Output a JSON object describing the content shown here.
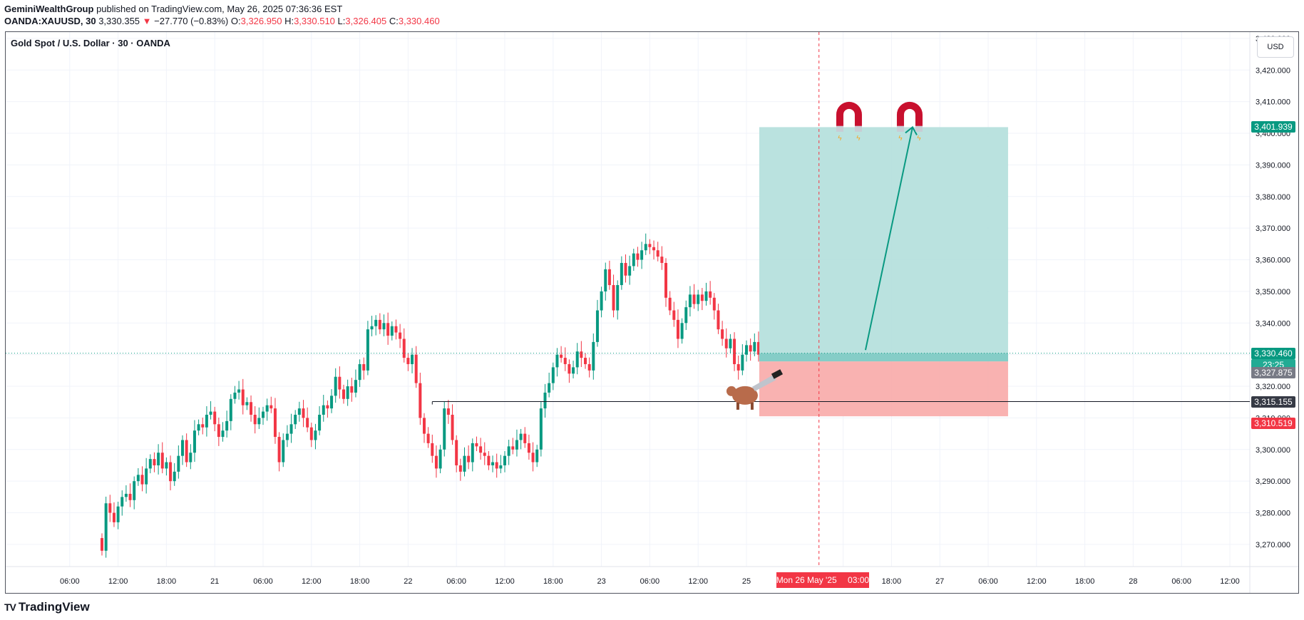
{
  "header": {
    "publisher": "GeminiWealthGroup",
    "published_text": "published on TradingView.com, May 26, 2025 07:36:36 EST",
    "symbol": "OANDA:XAUUSD, 30",
    "last": "3,330.355",
    "change_arrow": "▼",
    "change": "−27.770 (−0.83%)",
    "o_label": "O:",
    "o_value": "3,326.950",
    "h_label": "H:",
    "h_value": "3,330.510",
    "l_label": "L:",
    "l_value": "3,326.405",
    "c_label": "C:",
    "c_value": "3,330.460"
  },
  "colors": {
    "up": "#089981",
    "down": "#f23645",
    "target_zone": "#b2dfdb",
    "stop_zone": "#f8aaa9",
    "countdown": "#22ab94"
  },
  "currency_button": "USD",
  "tags": {
    "target": "3,401.939",
    "current": "3,330.460",
    "countdown": "23:25",
    "entry": "3,327.875",
    "support": "3,315.155",
    "stop": "3,310.519",
    "time": "Mon 26 May '25",
    "time_hour": "03:00"
  },
  "icons": [
    "magnet-icon",
    "magnet-icon",
    "bull-icon",
    "knife-icon"
  ],
  "footer": {
    "logo_text": "TradingView",
    "logo_mark": "TV"
  },
  "chart_data": {
    "type": "candlestick",
    "title": "Gold Spot / U.S. Dollar · 30 · OANDA",
    "ylim": [
      3263,
      3432
    ],
    "yticks": [
      3270,
      3280,
      3290,
      3300,
      3310,
      3320,
      3330,
      3340,
      3350,
      3360,
      3370,
      3380,
      3390,
      3400,
      3410,
      3420,
      3430
    ],
    "ytick_labels": [
      "3,270.000",
      "3,280.000",
      "3,290.000",
      "3,300.000",
      "3,310.000",
      "3,320.000",
      "3,330.000",
      "3,340.000",
      "3,350.000",
      "3,360.000",
      "3,370.000",
      "3,380.000",
      "3,390.000",
      "3,400.000",
      "3,410.000",
      "3,420.000",
      "3,430.000"
    ],
    "xticks": [
      {
        "hours": 6,
        "label": "06:00"
      },
      {
        "hours": 12,
        "label": "12:00"
      },
      {
        "hours": 18,
        "label": "18:00"
      },
      {
        "hours": 24,
        "label": "21"
      },
      {
        "hours": 30,
        "label": "06:00"
      },
      {
        "hours": 36,
        "label": "12:00"
      },
      {
        "hours": 42,
        "label": "18:00"
      },
      {
        "hours": 48,
        "label": "22"
      },
      {
        "hours": 54,
        "label": "06:00"
      },
      {
        "hours": 60,
        "label": "12:00"
      },
      {
        "hours": 66,
        "label": "18:00"
      },
      {
        "hours": 72,
        "label": "23"
      },
      {
        "hours": 78,
        "label": "06:00"
      },
      {
        "hours": 84,
        "label": "12:00"
      },
      {
        "hours": 90,
        "label": "25"
      },
      {
        "hours": 102,
        "label": "12:00"
      },
      {
        "hours": 108,
        "label": "18:00"
      },
      {
        "hours": 114,
        "label": "27"
      },
      {
        "hours": 120,
        "label": "06:00"
      },
      {
        "hours": 126,
        "label": "12:00"
      },
      {
        "hours": 132,
        "label": "18:00"
      },
      {
        "hours": 138,
        "label": "28"
      },
      {
        "hours": 144,
        "label": "06:00"
      },
      {
        "hours": 150,
        "label": "12:00"
      }
    ],
    "x_start_hours": 10,
    "x_step_hours": 0.5,
    "candle_closes": [
      3268,
      3283,
      3280,
      3277,
      3282,
      3285,
      3286,
      3284,
      3290,
      3292,
      3289,
      3294,
      3297,
      3295,
      3299,
      3294,
      3296,
      3290,
      3293,
      3298,
      3303,
      3296,
      3299,
      3306,
      3308,
      3307,
      3311,
      3312,
      3308,
      3304,
      3306,
      3309,
      3316,
      3318,
      3319,
      3314,
      3315,
      3311,
      3308,
      3310,
      3312,
      3314,
      3313,
      3304,
      3296,
      3303,
      3305,
      3308,
      3311,
      3313,
      3310,
      3307,
      3303,
      3306,
      3311,
      3314,
      3313,
      3317,
      3323,
      3319,
      3316,
      3320,
      3318,
      3322,
      3327,
      3325,
      3338,
      3339,
      3341,
      3338,
      3340,
      3336,
      3339,
      3337,
      3335,
      3329,
      3327,
      3330,
      3321,
      3310,
      3305,
      3302,
      3298,
      3294,
      3300,
      3313,
      3311,
      3303,
      3295,
      3293,
      3298,
      3296,
      3302,
      3301,
      3299,
      3298,
      3295,
      3296,
      3294,
      3295,
      3298,
      3301,
      3300,
      3303,
      3305,
      3302,
      3299,
      3296,
      3300,
      3313,
      3318,
      3321,
      3326,
      3330,
      3329,
      3327,
      3324,
      3326,
      3331,
      3329,
      3327,
      3325,
      3334,
      3344,
      3350,
      3357,
      3352,
      3344,
      3352,
      3359,
      3355,
      3358,
      3362,
      3360,
      3363,
      3365,
      3364,
      3363,
      3361,
      3359,
      3348,
      3344,
      3341,
      3335,
      3340,
      3345,
      3349,
      3346,
      3349,
      3347,
      3350,
      3348,
      3344,
      3338,
      3335,
      3332,
      3335,
      3327,
      3325,
      3330,
      3333,
      3331,
      3334,
      3330
    ],
    "last_price": 3330.46,
    "target_price": 3401.939,
    "entry_price": 3327.875,
    "stop_price": 3310.519,
    "support_price": 3315.155,
    "vertical_marker_hours": 99
  }
}
